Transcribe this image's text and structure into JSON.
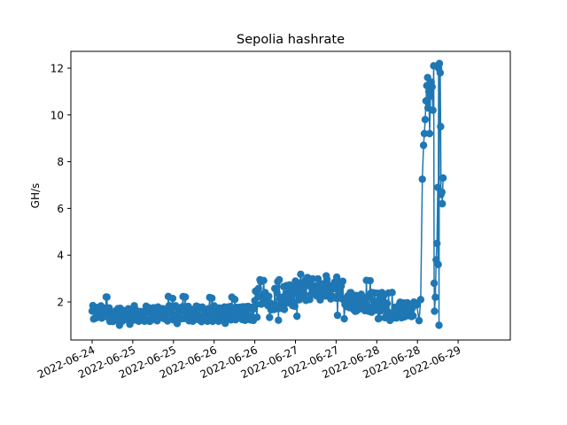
{
  "chart_data": {
    "type": "line",
    "title": "Sepolia hashrate",
    "xlabel": "",
    "ylabel": "GH/s",
    "marker": "circle",
    "color": "#1f77b4",
    "grid": false,
    "x_range_days": [
      -0.05,
      5.2
    ],
    "ylim": [
      0.5,
      12.7
    ],
    "x_ticks": [
      {
        "pos": 0.0,
        "label": "2022-06-24"
      },
      {
        "pos": 0.5,
        "label": "2022-06-25"
      },
      {
        "pos": 1.0,
        "label": "2022-06-25"
      },
      {
        "pos": 1.5,
        "label": "2022-06-26"
      },
      {
        "pos": 2.0,
        "label": "2022-06-26"
      },
      {
        "pos": 2.5,
        "label": "2022-06-27"
      },
      {
        "pos": 3.0,
        "label": "2022-06-27"
      },
      {
        "pos": 3.5,
        "label": "2022-06-28"
      },
      {
        "pos": 4.0,
        "label": "2022-06-28"
      },
      {
        "pos": 4.5,
        "label": "2022-06-29"
      }
    ],
    "y_ticks": [
      2,
      4,
      6,
      8,
      10,
      12
    ],
    "series": [
      {
        "name": "",
        "segments": [
          {
            "x_start": 0.0,
            "x_end": 2.0,
            "mean": 1.5,
            "amp": 0.35,
            "lo": 0.95,
            "hi": 2.25,
            "n": 220
          },
          {
            "x_start": 2.0,
            "x_end": 2.5,
            "mean": 2.2,
            "amp": 0.55,
            "lo": 1.2,
            "hi": 2.95,
            "n": 55
          },
          {
            "x_start": 2.5,
            "x_end": 3.1,
            "mean": 2.55,
            "amp": 0.5,
            "lo": 1.3,
            "hi": 3.2,
            "n": 65
          },
          {
            "x_start": 3.1,
            "x_end": 3.6,
            "mean": 2.0,
            "amp": 0.45,
            "lo": 1.2,
            "hi": 3.0,
            "n": 55
          },
          {
            "x_start": 3.6,
            "x_end": 4.0,
            "mean": 1.65,
            "amp": 0.35,
            "lo": 1.1,
            "hi": 2.5,
            "n": 45
          }
        ],
        "points": [
          [
            4.02,
            1.2
          ],
          [
            4.04,
            2.1
          ],
          [
            4.06,
            7.25
          ],
          [
            4.075,
            8.7
          ],
          [
            4.085,
            9.2
          ],
          [
            4.095,
            9.8
          ],
          [
            4.105,
            10.6
          ],
          [
            4.115,
            11.25
          ],
          [
            4.125,
            11.6
          ],
          [
            4.13,
            10.3
          ],
          [
            4.14,
            11.0
          ],
          [
            4.15,
            9.2
          ],
          [
            4.16,
            10.8
          ],
          [
            4.17,
            11.4
          ],
          [
            4.18,
            11.2
          ],
          [
            4.19,
            10.2
          ],
          [
            4.2,
            12.1
          ],
          [
            4.205,
            2.8
          ],
          [
            4.21,
            1.6
          ],
          [
            4.22,
            2.2
          ],
          [
            4.23,
            3.8
          ],
          [
            4.24,
            4.5
          ],
          [
            4.25,
            6.9
          ],
          [
            4.255,
            3.6
          ],
          [
            4.26,
            12.0
          ],
          [
            4.265,
            1.0
          ],
          [
            4.27,
            12.2
          ],
          [
            4.28,
            11.8
          ],
          [
            4.285,
            9.5
          ],
          [
            4.29,
            6.6
          ],
          [
            4.3,
            6.7
          ],
          [
            4.305,
            6.2
          ],
          [
            4.315,
            7.3
          ]
        ]
      }
    ]
  }
}
